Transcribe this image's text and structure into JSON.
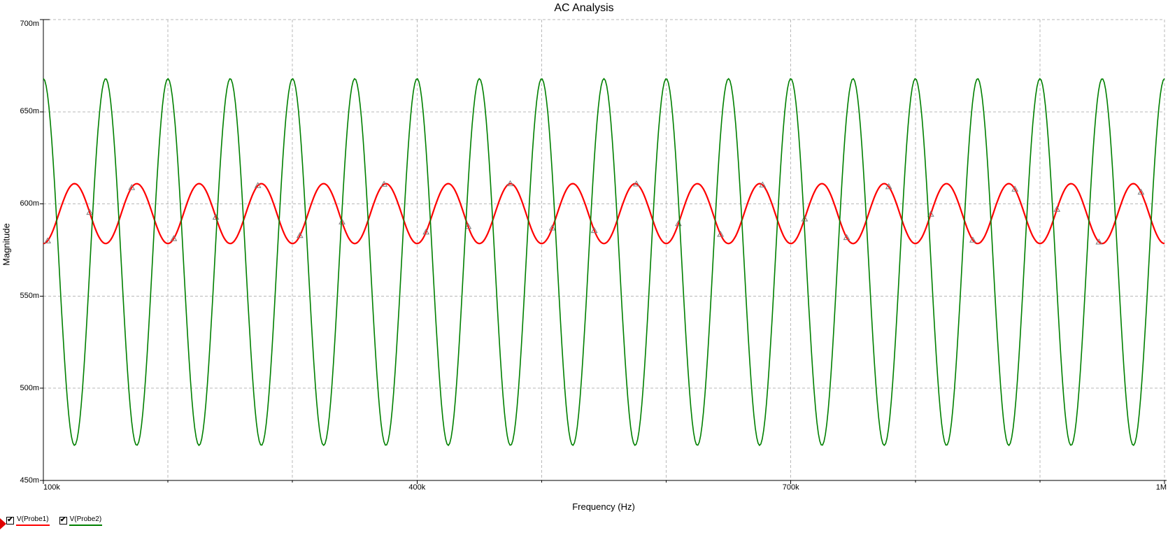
{
  "window_title": "AC Analysis",
  "chart_data": {
    "type": "line",
    "title": "AC Analysis",
    "xlabel": "Frequency (Hz)",
    "ylabel": "Magnitude",
    "x_axis": {
      "scale": "linear",
      "min_hz": 100000,
      "max_hz": 1000000,
      "grid_step_hz": 100000,
      "labeled_ticks": [
        {
          "hz": 100000,
          "label": "100k"
        },
        {
          "hz": 400000,
          "label": "400k"
        },
        {
          "hz": 700000,
          "label": "700k"
        },
        {
          "hz": 1000000,
          "label": "1M"
        }
      ]
    },
    "y_axis": {
      "unit": "V",
      "top_m": 700,
      "bottom_m": 450,
      "grid_step_m": 50,
      "labeled_ticks": [
        {
          "value_m": 700,
          "label": "700m"
        },
        {
          "value_m": 650,
          "label": "650m"
        },
        {
          "value_m": 600,
          "label": "600m"
        },
        {
          "value_m": 550,
          "label": "550m"
        },
        {
          "value_m": 500,
          "label": "500m"
        },
        {
          "value_m": 450,
          "label": "450m"
        }
      ]
    },
    "grid": {
      "visible": true,
      "style": "dashed",
      "color": "#b9b9b9"
    },
    "series": [
      {
        "name": "V(Probe1)",
        "color": "#ff0000",
        "stroke_width": 2.2,
        "waveform": "sine",
        "period_hz": 50000,
        "min_m": 578.5,
        "max_m": 611,
        "extremum_at_min_freq": "min",
        "point_markers": {
          "shape": "triangle",
          "color": "#7a7a7a",
          "first_hz": 103400,
          "step_hz": 33760
        }
      },
      {
        "name": "V(Probe2)",
        "color": "#008000",
        "stroke_width": 1.6,
        "waveform": "sine",
        "period_hz": 50000,
        "min_m": 469,
        "max_m": 668,
        "extremum_at_min_freq": "max",
        "point_markers": null
      }
    ],
    "legend_position": "bottom-left"
  },
  "legend": {
    "active_trace_marker": "red-right-arrow",
    "items": [
      {
        "label": "V(Probe1)",
        "checked": true,
        "check_glyph": "✔",
        "color": "#ff0000"
      },
      {
        "label": "V(Probe2)",
        "checked": true,
        "check_glyph": "✔",
        "color": "#008000"
      }
    ]
  },
  "colors": {
    "background": "#ffffff",
    "axis": "#000000",
    "grid": "#b9b9b9",
    "marker_outline": "#7a7a7a",
    "active_arrow": "#e00000"
  }
}
